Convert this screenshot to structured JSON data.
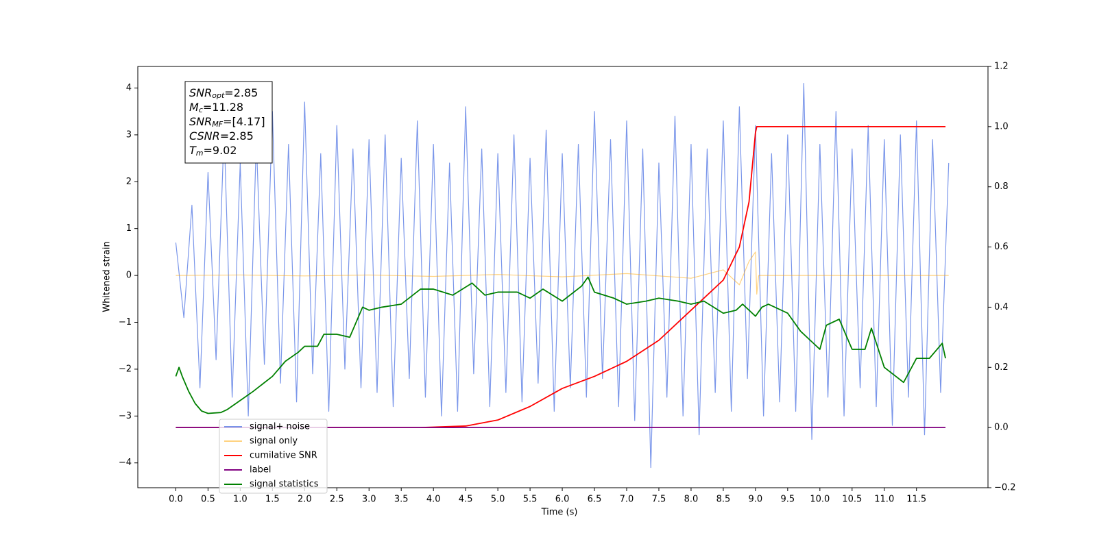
{
  "chart_data": {
    "type": "line",
    "xlabel": "Time (s)",
    "ylabel": "Whitened strain",
    "xlim": [
      -0.59,
      12.61
    ],
    "ylim": [
      -4.53,
      4.46
    ],
    "y2lim": [
      -0.2,
      1.2
    ],
    "xticks": [
      {
        "value": 0,
        "label": "0.0"
      },
      0.5,
      {
        "value": 1,
        "label": "1.0"
      },
      1.5,
      {
        "value": 2,
        "label": "2.0"
      },
      2.5,
      {
        "value": 3,
        "label": "3.0"
      },
      3.5,
      {
        "value": 4,
        "label": "4.0"
      },
      4.5,
      {
        "value": 5,
        "label": "5.0"
      },
      5.5,
      {
        "value": 6,
        "label": "6.0"
      },
      6.5,
      {
        "value": 7,
        "label": "7.0"
      },
      7.5,
      {
        "value": 8,
        "label": "8.0"
      },
      8.5,
      {
        "value": 9,
        "label": "9.0"
      },
      9.5,
      {
        "value": 10,
        "label": "10.0"
      },
      10.5,
      {
        "value": 11,
        "label": "11.0"
      },
      11.5
    ],
    "yticks": [
      {
        "value": -4,
        "label": "−4"
      },
      {
        "value": -3,
        "label": "−3"
      },
      {
        "value": -2,
        "label": "−2"
      },
      {
        "value": -1,
        "label": "−1"
      },
      0,
      1,
      2,
      3,
      4
    ],
    "y2ticks": [
      {
        "value": -0.2,
        "label": "−0.2"
      },
      {
        "value": 0,
        "label": "0.0"
      },
      0.2,
      0.4,
      0.6,
      0.8,
      {
        "value": 1,
        "label": "1.0"
      },
      1.2
    ],
    "legend": "lower left",
    "annotation": [
      {
        "symbol": "SNR",
        "sub": "opt",
        "text": "=2.85"
      },
      {
        "symbol": "M",
        "sub": "c",
        "text": "=11.28"
      },
      {
        "symbol": "SNR",
        "sub": "MF",
        "text": "=[4.17]"
      },
      {
        "symbol": "CSNR",
        "sub": "",
        "text": "=2.85"
      },
      {
        "symbol": "T",
        "sub": "m",
        "text": "=9.02"
      }
    ],
    "series": [
      {
        "name": "signal+ noise",
        "color": "#4169e1",
        "alpha": 0.7,
        "x": [
          0,
          0.125,
          0.25,
          0.375,
          0.5,
          0.625,
          0.75,
          0.875,
          1,
          1.125,
          1.25,
          1.375,
          1.5,
          1.625,
          1.75,
          1.875,
          2,
          2.125,
          2.25,
          2.375,
          2.5,
          2.625,
          2.75,
          2.875,
          3,
          3.125,
          3.25,
          3.375,
          3.5,
          3.625,
          3.75,
          3.875,
          4,
          4.125,
          4.25,
          4.375,
          4.5,
          4.625,
          4.75,
          4.875,
          5,
          5.125,
          5.25,
          5.375,
          5.5,
          5.625,
          5.75,
          5.875,
          6,
          6.125,
          6.25,
          6.375,
          6.5,
          6.625,
          6.75,
          6.875,
          7,
          7.125,
          7.25,
          7.375,
          7.5,
          7.625,
          7.75,
          7.875,
          8,
          8.125,
          8.25,
          8.375,
          8.5,
          8.625,
          8.75,
          8.875,
          9,
          9.125,
          9.25,
          9.375,
          9.5,
          9.625,
          9.75,
          9.875,
          10,
          10.125,
          10.25,
          10.375,
          10.5,
          10.625,
          10.75,
          10.875,
          11,
          11.125,
          11.25,
          11.375,
          11.5,
          11.625,
          11.75,
          11.875,
          12
        ],
        "values": [
          0.7,
          -0.9,
          1.5,
          -2.4,
          2.2,
          -1.8,
          3.1,
          -2.6,
          2.4,
          -3.0,
          2.9,
          -1.9,
          3.5,
          -2.3,
          2.8,
          -2.7,
          3.7,
          -2.1,
          2.6,
          -2.9,
          3.2,
          -2.0,
          2.7,
          -2.4,
          2.9,
          -2.5,
          3.0,
          -2.8,
          2.5,
          -2.2,
          3.3,
          -2.6,
          2.8,
          -3.0,
          2.4,
          -2.9,
          3.6,
          -2.1,
          2.7,
          -2.8,
          2.6,
          -2.5,
          3.0,
          -2.7,
          2.5,
          -2.3,
          3.1,
          -2.9,
          2.6,
          -2.4,
          2.8,
          -2.6,
          3.5,
          -2.2,
          2.9,
          -2.8,
          3.3,
          -3.1,
          2.7,
          -4.1,
          2.4,
          -2.6,
          3.4,
          -3.0,
          2.8,
          -3.4,
          2.7,
          -2.5,
          3.3,
          -2.9,
          3.6,
          -2.2,
          3.2,
          -3.0,
          2.6,
          -2.7,
          3.0,
          -2.9,
          4.1,
          -3.5,
          2.8,
          -2.6,
          3.5,
          -3.0,
          2.7,
          -2.4,
          3.2,
          -2.8,
          2.9,
          -3.2,
          3.0,
          -2.6,
          3.3,
          -3.4,
          2.9,
          -2.5,
          2.4
        ]
      },
      {
        "name": "signal only",
        "color": "#ffa500",
        "alpha": 0.5,
        "x": [
          0,
          1,
          2,
          3,
          4,
          5,
          6,
          7,
          8,
          8.5,
          8.75,
          8.9,
          9.0,
          9.02,
          9.05,
          12
        ],
        "values": [
          0,
          0.01,
          -0.01,
          0.01,
          -0.02,
          0.02,
          -0.03,
          0.04,
          -0.06,
          0.12,
          -0.2,
          0.3,
          0.5,
          -0.4,
          0,
          0
        ]
      },
      {
        "name": "cumilative SNR",
        "color": "#ff0000",
        "alpha": 1,
        "axis": "y2",
        "x": [
          0,
          3.8,
          4.5,
          5.0,
          5.5,
          6.0,
          6.5,
          7.0,
          7.5,
          8.0,
          8.5,
          8.75,
          8.9,
          9.0,
          9.02,
          11.95
        ],
        "values": [
          0,
          0,
          0.005,
          0.025,
          0.07,
          0.13,
          0.17,
          0.22,
          0.29,
          0.39,
          0.49,
          0.6,
          0.75,
          0.98,
          1.0,
          1.0
        ]
      },
      {
        "name": "label",
        "color": "#800080",
        "alpha": 1,
        "axis": "y2",
        "x": [
          0,
          11.95
        ],
        "values": [
          0,
          0
        ]
      },
      {
        "name": "signal statistics",
        "color": "#008000",
        "alpha": 1,
        "axis": "y2",
        "x": [
          0,
          0.05,
          0.1,
          0.2,
          0.3,
          0.4,
          0.5,
          0.7,
          0.8,
          1.0,
          1.2,
          1.5,
          1.7,
          1.9,
          2.0,
          2.2,
          2.3,
          2.5,
          2.7,
          2.9,
          3.0,
          3.2,
          3.5,
          3.8,
          4.0,
          4.3,
          4.6,
          4.8,
          5.0,
          5.3,
          5.5,
          5.7,
          6.0,
          6.3,
          6.4,
          6.5,
          6.8,
          7.0,
          7.3,
          7.5,
          7.8,
          8.0,
          8.2,
          8.5,
          8.7,
          8.8,
          9.0,
          9.1,
          9.2,
          9.5,
          9.7,
          9.9,
          10.0,
          10.1,
          10.3,
          10.5,
          10.7,
          10.8,
          11.0,
          11.3,
          11.5,
          11.7,
          11.9,
          11.95
        ],
        "values": [
          0.17,
          0.2,
          0.17,
          0.12,
          0.08,
          0.055,
          0.047,
          0.05,
          0.06,
          0.09,
          0.12,
          0.17,
          0.22,
          0.25,
          0.27,
          0.27,
          0.31,
          0.31,
          0.3,
          0.4,
          0.39,
          0.4,
          0.41,
          0.46,
          0.46,
          0.44,
          0.48,
          0.44,
          0.45,
          0.45,
          0.43,
          0.46,
          0.42,
          0.47,
          0.5,
          0.45,
          0.43,
          0.41,
          0.42,
          0.43,
          0.42,
          0.41,
          0.42,
          0.38,
          0.39,
          0.41,
          0.37,
          0.4,
          0.41,
          0.38,
          0.32,
          0.28,
          0.26,
          0.34,
          0.36,
          0.26,
          0.26,
          0.33,
          0.2,
          0.15,
          0.23,
          0.23,
          0.28,
          0.23
        ]
      }
    ]
  }
}
